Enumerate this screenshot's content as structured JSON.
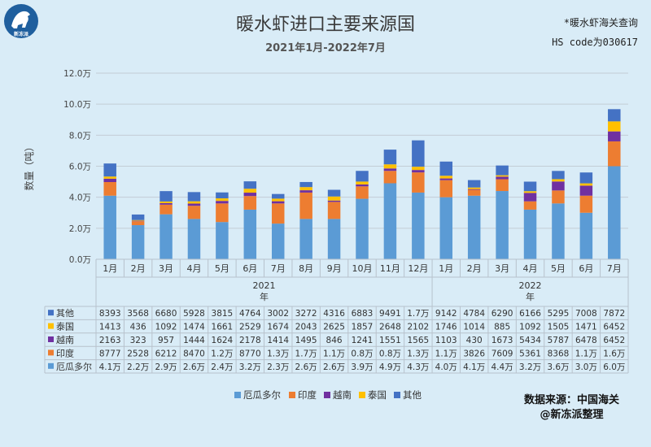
{
  "title": "暖水虾进口主要来源国",
  "subtitle": "2021年1月-2022年7月",
  "note_lines": [
    "*暖水虾海关查询",
    "HS code为030617"
  ],
  "source_lines": [
    "数据来源：中国海关",
    "@新冻派整理"
  ],
  "logo_text": "新冻派",
  "colors": {
    "background": "#d9ecf7",
    "grid": "#c3cdd6",
    "厄瓜多尔": "#5b9bd5",
    "印度": "#ed7d31",
    "越南": "#7030a0",
    "泰国": "#ffc000",
    "其他": "#4472c4"
  },
  "chart_data": {
    "type": "bar",
    "stacked": true,
    "title": "暖水虾进口主要来源国",
    "subtitle": "2021年1月-2022年7月",
    "ylabel": "数量（吨）",
    "ylim": [
      0,
      120000
    ],
    "y_ticks": [
      "0.0万",
      "2.0万",
      "4.0万",
      "6.0万",
      "8.0万",
      "10.0万",
      "12.0万"
    ],
    "y_tick_values": [
      0,
      20000,
      40000,
      60000,
      80000,
      100000,
      120000
    ],
    "grid": true,
    "legend_position": "bottom",
    "groups": [
      {
        "label": "2021",
        "sublabel": "年",
        "count": 12
      },
      {
        "label": "2022",
        "sublabel": "年",
        "count": 7
      }
    ],
    "categories": [
      "1月",
      "2月",
      "3月",
      "4月",
      "5月",
      "6月",
      "7月",
      "8月",
      "9月",
      "10月",
      "11月",
      "12月",
      "1月",
      "2月",
      "3月",
      "4月",
      "5月",
      "6月",
      "7月"
    ],
    "series": [
      {
        "name": "厄瓜多尔",
        "values": [
          41000,
          22000,
          29000,
          26000,
          24000,
          32000,
          23000,
          26000,
          26000,
          39000,
          49000,
          43000,
          40000,
          41000,
          44000,
          32000,
          36000,
          30000,
          60000
        ]
      },
      {
        "name": "印度",
        "values": [
          8777,
          2528,
          6212,
          8470,
          12000,
          8770,
          13000,
          17000,
          11000,
          8000,
          8000,
          13000,
          11000,
          3826,
          7609,
          5361,
          8368,
          11000,
          16000
        ]
      },
      {
        "name": "越南",
        "values": [
          2163,
          323,
          957,
          1444,
          1624,
          2178,
          1414,
          1495,
          846,
          1241,
          1551,
          1565,
          1103,
          430,
          1673,
          5434,
          5787,
          6478,
          6452
        ]
      },
      {
        "name": "泰国",
        "values": [
          1413,
          436,
          1092,
          1474,
          1661,
          2529,
          1674,
          2043,
          2625,
          1857,
          2648,
          2102,
          1746,
          1014,
          885,
          1092,
          1505,
          1471,
          6452
        ]
      },
      {
        "name": "其他",
        "values": [
          8393,
          3568,
          6680,
          5928,
          3815,
          4764,
          3002,
          3272,
          4316,
          6883,
          9491,
          17000,
          9142,
          4784,
          6290,
          6166,
          5295,
          7008,
          7872
        ]
      }
    ],
    "table_rows": [
      {
        "name": "其他",
        "cells": [
          "8393",
          "3568",
          "6680",
          "5928",
          "3815",
          "4764",
          "3002",
          "3272",
          "4316",
          "6883",
          "9491",
          "1.7万",
          "9142",
          "4784",
          "6290",
          "6166",
          "5295",
          "7008",
          "7872"
        ]
      },
      {
        "name": "泰国",
        "cells": [
          "1413",
          "436",
          "1092",
          "1474",
          "1661",
          "2529",
          "1674",
          "2043",
          "2625",
          "1857",
          "2648",
          "2102",
          "1746",
          "1014",
          "885",
          "1092",
          "1505",
          "1471",
          "6452"
        ]
      },
      {
        "name": "越南",
        "cells": [
          "2163",
          "323",
          "957",
          "1444",
          "1624",
          "2178",
          "1414",
          "1495",
          "846",
          "1241",
          "1551",
          "1565",
          "1103",
          "430",
          "1673",
          "5434",
          "5787",
          "6478",
          "6452"
        ]
      },
      {
        "name": "印度",
        "cells": [
          "8777",
          "2528",
          "6212",
          "8470",
          "1.2万",
          "8770",
          "1.3万",
          "1.7万",
          "1.1万",
          "0.8万",
          "0.8万",
          "1.3万",
          "1.1万",
          "3826",
          "7609",
          "5361",
          "8368",
          "1.1万",
          "1.6万"
        ]
      },
      {
        "name": "厄瓜多尔",
        "cells": [
          "4.1万",
          "2.2万",
          "2.9万",
          "2.6万",
          "2.4万",
          "3.2万",
          "2.3万",
          "2.6万",
          "2.6万",
          "3.9万",
          "4.9万",
          "4.3万",
          "4.0万",
          "4.1万",
          "4.4万",
          "3.2万",
          "3.6万",
          "3.0万",
          "6.0万"
        ]
      }
    ],
    "legend": [
      "厄瓜多尔",
      "印度",
      "越南",
      "泰国",
      "其他"
    ]
  }
}
